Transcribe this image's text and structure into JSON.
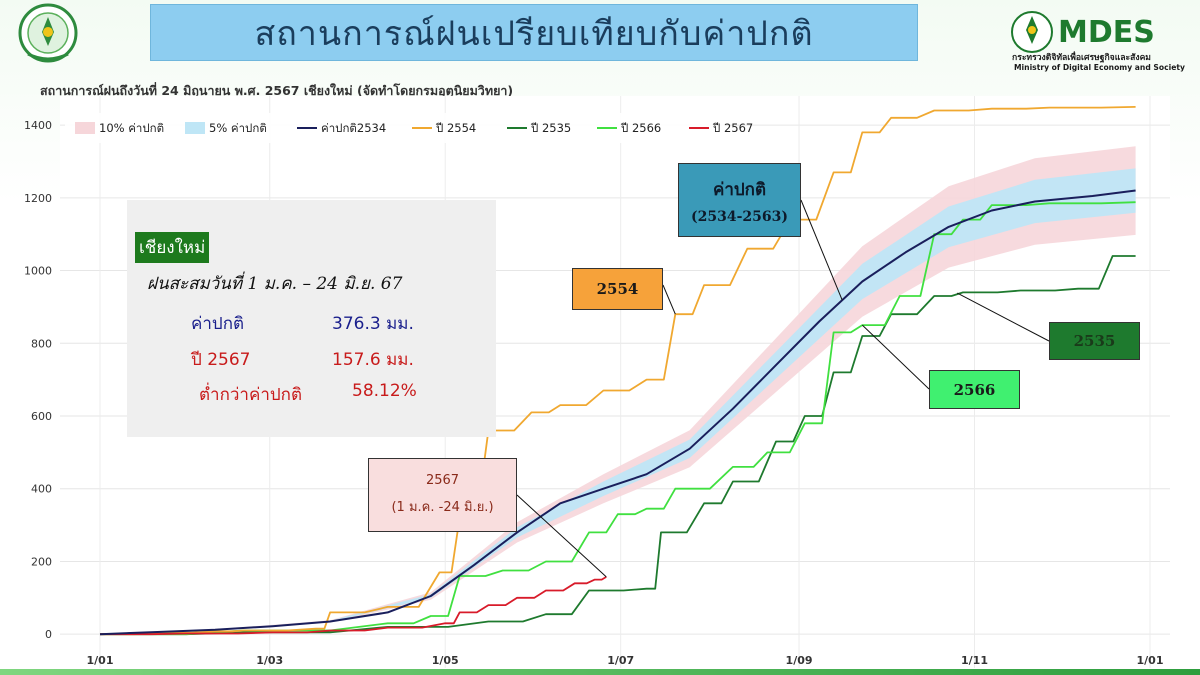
{
  "header": {
    "title": "สถานการณ์ฝนเปรียบเทียบกับค่าปกติ",
    "right_logo_text": "MDES",
    "right_logo_thai": "กระทรวงดิจิทัลเพื่อเศรษฐกิจและสังคม",
    "right_logo_en": "Ministry of Digital Economy and Society",
    "left_logo_text": "ศูนย์อุตุนิยมวิทยาภาคเหนือ"
  },
  "info": {
    "province": "เชียงใหม่",
    "accum_label": "ฝนสะสมวันที่ 1 ม.ค. – 24 มิ.ย.  67",
    "normal_label": "ค่าปกติ",
    "normal_value": "376.3 มม.",
    "year_label": "ปี 2567",
    "year_value": "157.6 มม.",
    "below_label": "ต่ำกว่าค่าปกติ",
    "below_value": "58.12%"
  },
  "colors": {
    "normal": "#1a1f5c",
    "y2554": "#f0a830",
    "y2535": "#1e7a2e",
    "y2566": "#40e040",
    "y2567": "#d81b2a",
    "band10": "#f6d6da",
    "band5": "#bfe6f6"
  },
  "chart_data": {
    "type": "line",
    "title": "สถานการณ์ฝนถึงวันที่ 24 มิถุนายน พ.ศ. 2567 เชียงใหม่ (จัดทำโดยกรมอุตุนิยมวิทยา)",
    "xlabel": "",
    "ylabel": "",
    "x_ticks": [
      "1/01",
      "1/03",
      "1/05",
      "1/07",
      "1/09",
      "1/11",
      "1/01"
    ],
    "x_tick_days": [
      0,
      59,
      120,
      181,
      243,
      304,
      365
    ],
    "xlim": [
      0,
      365
    ],
    "y_ticks": [
      0,
      200,
      400,
      600,
      800,
      1000,
      1200,
      1400
    ],
    "ylim": [
      -60,
      1480
    ],
    "grid": true,
    "legend_position": "top-left",
    "legend": [
      {
        "label": "10% ค่าปกติ",
        "key": "band10",
        "kind": "band"
      },
      {
        "label": "5% ค่าปกติ",
        "key": "band5",
        "kind": "band"
      },
      {
        "label": "ค่าปกติ2534",
        "key": "normal",
        "kind": "line"
      },
      {
        "label": "ปี 2554",
        "key": "y2554",
        "kind": "line"
      },
      {
        "label": "ปี 2535",
        "key": "y2535",
        "kind": "line"
      },
      {
        "label": "ปี 2566",
        "key": "y2566",
        "kind": "line"
      },
      {
        "label": "ปี 2567",
        "key": "y2567",
        "kind": "line"
      }
    ],
    "series": [
      {
        "key": "normal",
        "name": "ค่าปกติ2534",
        "x": [
          0,
          20,
          40,
          60,
          80,
          100,
          115,
          130,
          145,
          160,
          175,
          190,
          205,
          220,
          235,
          250,
          265,
          280,
          295,
          310,
          325,
          345,
          360
        ],
        "y": [
          0,
          6,
          12,
          22,
          35,
          60,
          105,
          190,
          280,
          360,
          400,
          440,
          510,
          620,
          740,
          860,
          970,
          1050,
          1120,
          1165,
          1190,
          1205,
          1220
        ]
      },
      {
        "key": "y2554",
        "name": "ปี 2554",
        "x": [
          0,
          20,
          40,
          50,
          75,
          80,
          100,
          118,
          125,
          135,
          150,
          160,
          175,
          190,
          200,
          210,
          225,
          240,
          255,
          265,
          275,
          290,
          310,
          330,
          360
        ],
        "y": [
          0,
          4,
          8,
          10,
          15,
          60,
          75,
          170,
          320,
          560,
          610,
          630,
          670,
          700,
          880,
          960,
          1060,
          1140,
          1270,
          1380,
          1420,
          1440,
          1445,
          1448,
          1450
        ]
      },
      {
        "key": "y2535",
        "name": "ปี 2535",
        "x": [
          0,
          50,
          100,
          135,
          155,
          170,
          190,
          195,
          210,
          220,
          235,
          245,
          255,
          265,
          275,
          290,
          300,
          320,
          340,
          352,
          360
        ],
        "y": [
          0,
          5,
          20,
          35,
          55,
          120,
          125,
          280,
          360,
          420,
          530,
          600,
          720,
          820,
          880,
          930,
          940,
          945,
          950,
          1040,
          1040
        ]
      },
      {
        "key": "y2566",
        "name": "ปี 2566",
        "x": [
          0,
          50,
          100,
          115,
          125,
          140,
          155,
          170,
          180,
          190,
          200,
          220,
          232,
          245,
          255,
          265,
          278,
          290,
          300,
          310,
          330,
          360
        ],
        "y": [
          0,
          10,
          30,
          50,
          160,
          175,
          200,
          280,
          330,
          345,
          400,
          460,
          500,
          580,
          830,
          850,
          930,
          1100,
          1140,
          1180,
          1185,
          1188
        ]
      },
      {
        "key": "y2567",
        "name": "ปี 2567",
        "x": [
          0,
          30,
          60,
          80,
          100,
          120,
          125,
          135,
          145,
          155,
          165,
          172,
          176
        ],
        "y": [
          0,
          2,
          5,
          10,
          18,
          30,
          60,
          80,
          100,
          120,
          140,
          150,
          157.6
        ]
      }
    ],
    "bands": {
      "x": [
        0,
        40,
        80,
        115,
        145,
        175,
        205,
        235,
        265,
        295,
        325,
        360
      ],
      "outer_scale": 0.1,
      "inner_scale": 0.05
    },
    "annotations": [
      {
        "key": "y2554",
        "label": "2554"
      },
      {
        "key": "normal",
        "label": "ค่าปกติ",
        "label2": "(2534-2563)"
      },
      {
        "key": "y2535",
        "label": "2535"
      },
      {
        "key": "y2566",
        "label": "2566"
      },
      {
        "key": "y2567",
        "label": "2567",
        "label2": "(1 ม.ค. -24 มิ.ย.)"
      }
    ]
  }
}
